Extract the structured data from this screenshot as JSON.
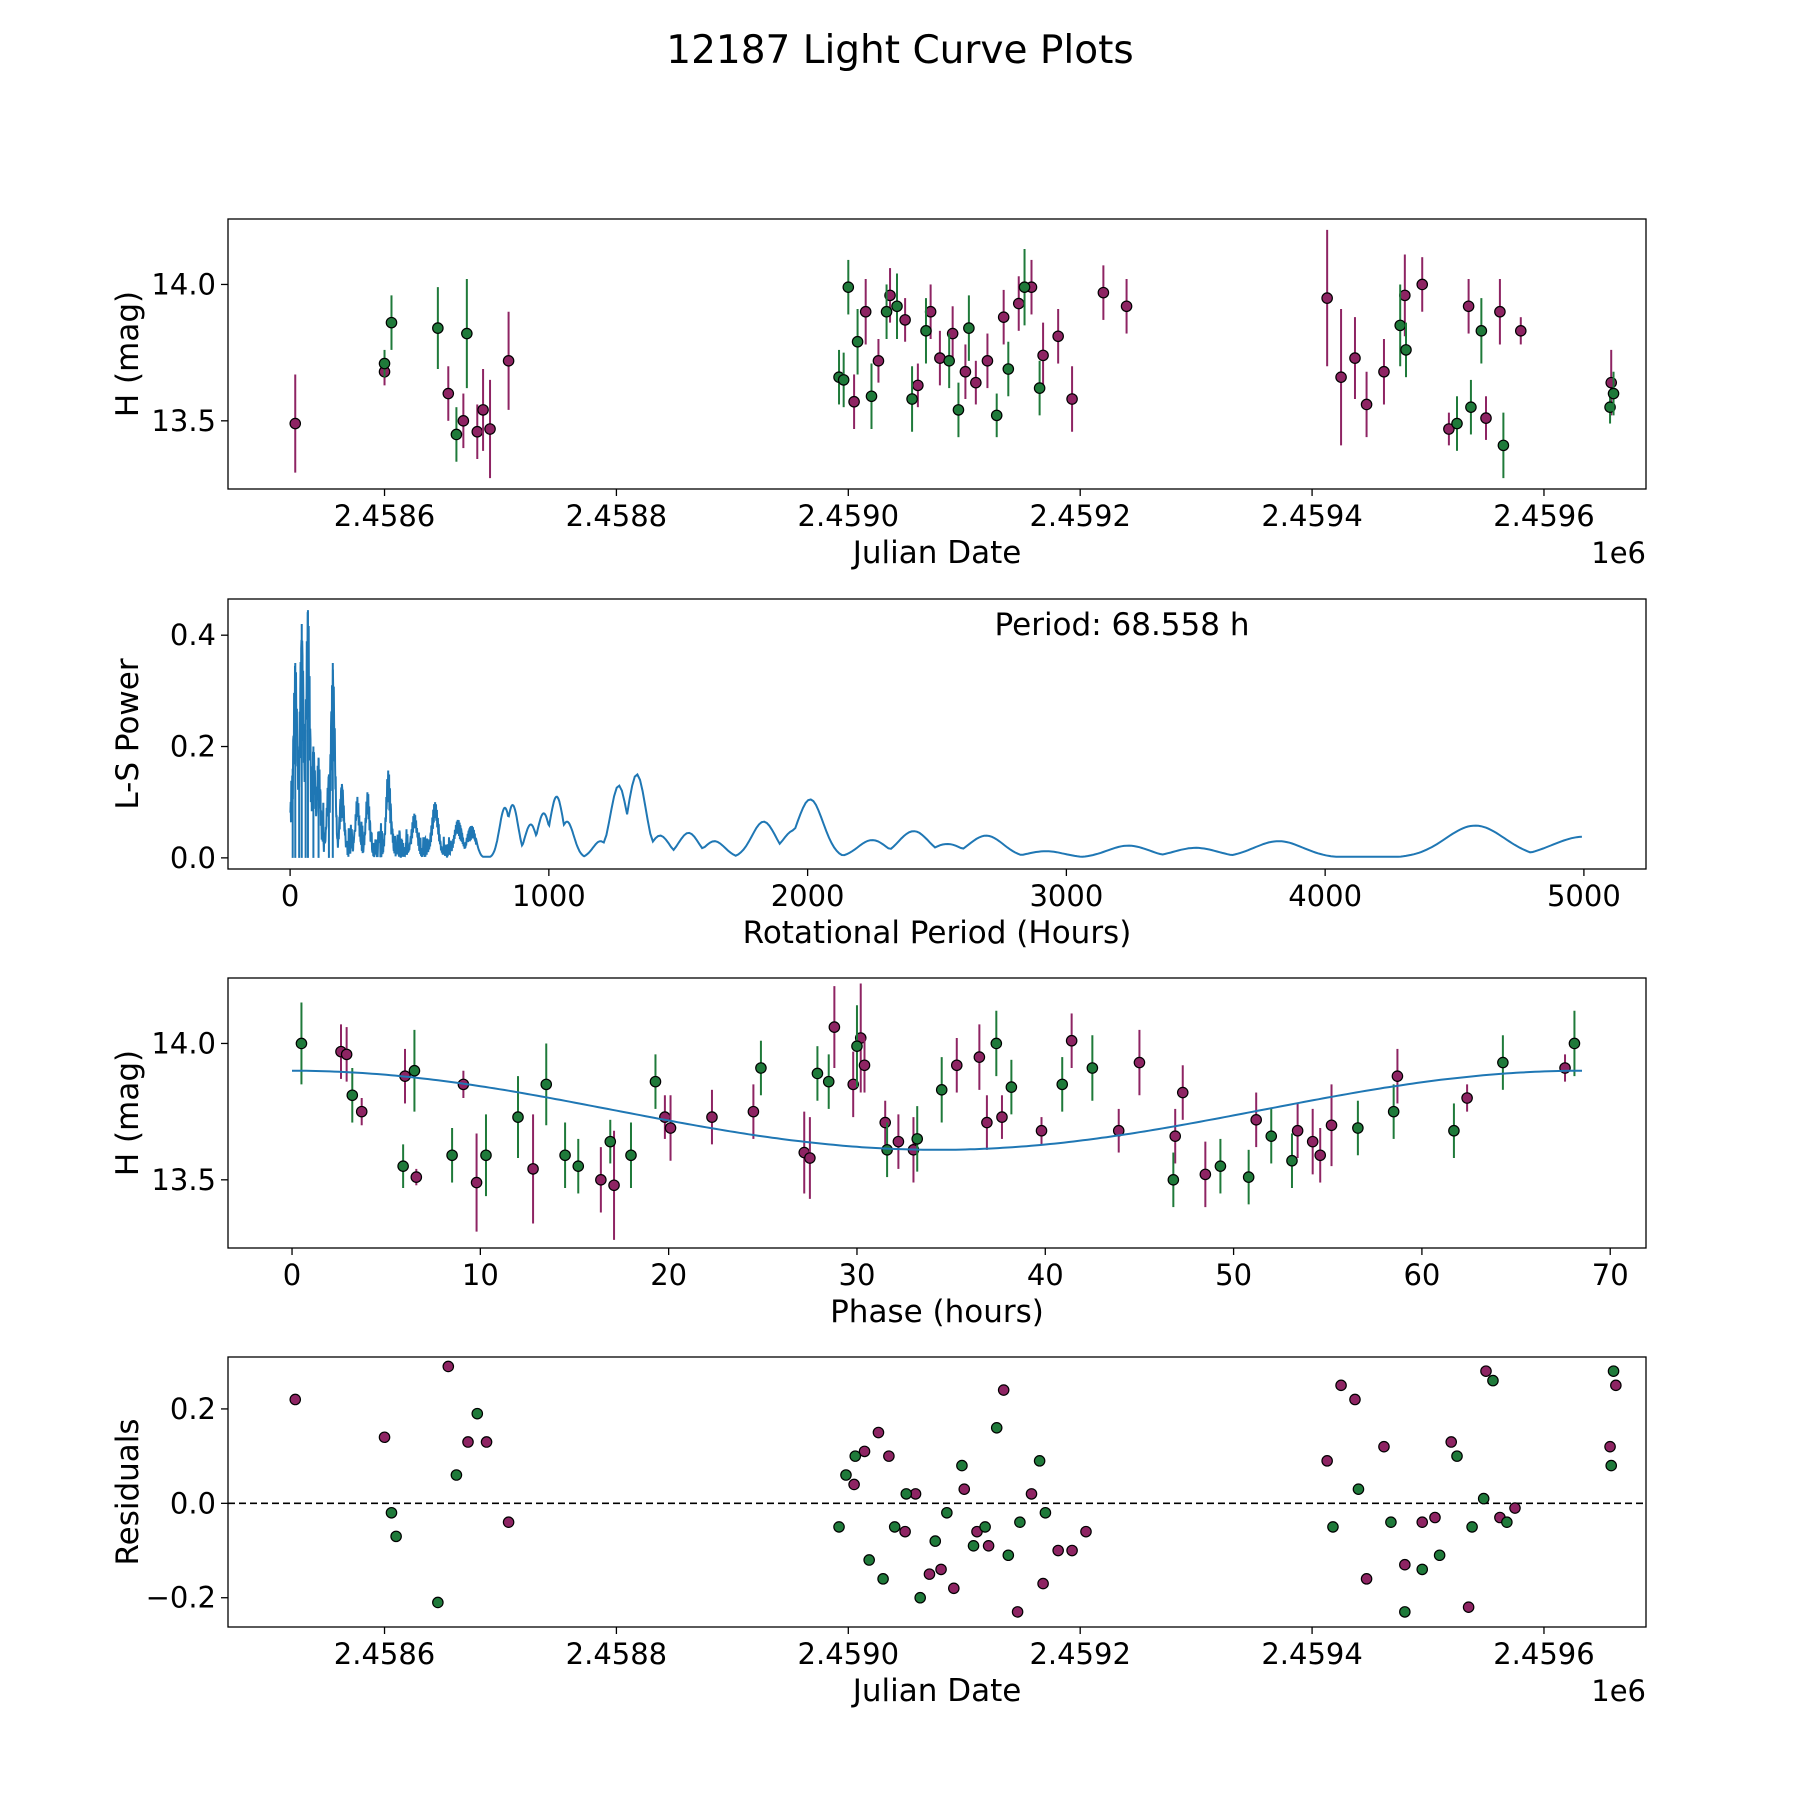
{
  "figure_title": "12187 Light Curve Plots",
  "colors": {
    "magenta_points": "#8e2463",
    "green_points": "#1f7a3a",
    "curve_blue": "#1f77b4"
  },
  "chart_data": [
    {
      "id": "lc",
      "type": "scatter",
      "title": "",
      "xlabel": "Julian Date",
      "ylabel": "H (mag)",
      "xlim": [
        2458465,
        2459688
      ],
      "ylim": [
        13.25,
        14.24
      ],
      "x_offset_label": "1e6",
      "xticks": [
        2458600,
        2458800,
        2459000,
        2459200,
        2459400,
        2459600
      ],
      "xtick_labels": [
        "2.4586",
        "2.4588",
        "2.4590",
        "2.4592",
        "2.4594",
        "2.4596"
      ],
      "yticks": [
        13.5,
        14.0
      ],
      "ytick_labels": [
        "13.5",
        "14.0"
      ],
      "series": [
        {
          "name": "magenta",
          "x": [
            2458523,
            2458600,
            2458655,
            2458668,
            2458680,
            2458685,
            2458691,
            2458707,
            2459005,
            2459015,
            2459026,
            2459036,
            2459049,
            2459060,
            2459071,
            2459079,
            2459090,
            2459101,
            2459110,
            2459120,
            2459134,
            2459147,
            2459158,
            2459168,
            2459181,
            2459193,
            2459220,
            2459240,
            2459413,
            2459425,
            2459437,
            2459447,
            2459462,
            2459480,
            2459495,
            2459518,
            2459535,
            2459550,
            2459562,
            2459580,
            2459658
          ],
          "y": [
            13.49,
            13.68,
            13.6,
            13.5,
            13.46,
            13.54,
            13.47,
            13.72,
            13.57,
            13.9,
            13.72,
            13.96,
            13.87,
            13.63,
            13.9,
            13.73,
            13.82,
            13.68,
            13.64,
            13.72,
            13.88,
            13.93,
            13.99,
            13.74,
            13.81,
            13.58,
            13.97,
            13.92,
            13.95,
            13.66,
            13.73,
            13.56,
            13.68,
            13.96,
            14.0,
            13.47,
            13.92,
            13.51,
            13.9,
            13.83,
            13.64
          ],
          "yerr": [
            0.18,
            0.05,
            0.1,
            0.1,
            0.1,
            0.15,
            0.18,
            0.18,
            0.1,
            0.12,
            0.08,
            0.1,
            0.08,
            0.08,
            0.1,
            0.1,
            0.1,
            0.1,
            0.08,
            0.1,
            0.1,
            0.1,
            0.1,
            0.12,
            0.1,
            0.12,
            0.1,
            0.1,
            0.25,
            0.25,
            0.15,
            0.12,
            0.12,
            0.15,
            0.1,
            0.06,
            0.1,
            0.08,
            0.12,
            0.05,
            0.12
          ]
        },
        {
          "name": "green",
          "x": [
            2458600,
            2458606,
            2458646,
            2458662,
            2458671,
            2458992,
            2458996,
            2459000,
            2459008,
            2459020,
            2459033,
            2459042,
            2459055,
            2459067,
            2459087,
            2459095,
            2459104,
            2459128,
            2459138,
            2459152,
            2459165,
            2459476,
            2459481,
            2459525,
            2459537,
            2459546,
            2459565,
            2459657,
            2459660
          ],
          "y": [
            13.71,
            13.86,
            13.84,
            13.45,
            13.82,
            13.66,
            13.65,
            13.99,
            13.79,
            13.59,
            13.9,
            13.92,
            13.58,
            13.83,
            13.72,
            13.54,
            13.84,
            13.52,
            13.69,
            13.99,
            13.62,
            13.85,
            13.76,
            13.49,
            13.55,
            13.83,
            13.41,
            13.55,
            13.6
          ],
          "yerr": [
            0.05,
            0.1,
            0.15,
            0.1,
            0.2,
            0.1,
            0.1,
            0.1,
            0.12,
            0.12,
            0.1,
            0.12,
            0.12,
            0.12,
            0.1,
            0.1,
            0.12,
            0.08,
            0.1,
            0.14,
            0.1,
            0.15,
            0.1,
            0.1,
            0.1,
            0.12,
            0.12,
            0.06,
            0.08
          ]
        }
      ]
    },
    {
      "id": "ls",
      "type": "line",
      "title": "",
      "xlabel": "Rotational Period (Hours)",
      "ylabel": "L-S Power",
      "annotation": "Period: 68.558 h",
      "xlim": [
        -240,
        5240
      ],
      "ylim": [
        -0.02,
        0.465
      ],
      "xticks": [
        0,
        1000,
        2000,
        3000,
        4000,
        5000
      ],
      "xtick_labels": [
        "0",
        "1000",
        "2000",
        "3000",
        "4000",
        "5000"
      ],
      "yticks": [
        0.0,
        0.2,
        0.4
      ],
      "ytick_labels": [
        "0.0",
        "0.2",
        "0.4"
      ],
      "peaks": [
        {
          "period": 10,
          "power": 0.16
        },
        {
          "period": 20,
          "power": 0.35
        },
        {
          "period": 35,
          "power": 0.2
        },
        {
          "period": 45,
          "power": 0.42
        },
        {
          "period": 60,
          "power": 0.23
        },
        {
          "period": 69,
          "power": 0.445
        },
        {
          "period": 90,
          "power": 0.2
        },
        {
          "period": 110,
          "power": 0.18
        },
        {
          "period": 150,
          "power": 0.15
        },
        {
          "period": 165,
          "power": 0.35
        },
        {
          "period": 200,
          "power": 0.14
        },
        {
          "period": 260,
          "power": 0.11
        },
        {
          "period": 300,
          "power": 0.12
        },
        {
          "period": 380,
          "power": 0.16
        },
        {
          "period": 480,
          "power": 0.08
        },
        {
          "period": 560,
          "power": 0.1
        },
        {
          "period": 650,
          "power": 0.07
        },
        {
          "period": 700,
          "power": 0.06
        },
        {
          "period": 830,
          "power": 0.09
        },
        {
          "period": 860,
          "power": 0.095
        },
        {
          "period": 930,
          "power": 0.06
        },
        {
          "period": 980,
          "power": 0.08
        },
        {
          "period": 1030,
          "power": 0.11
        },
        {
          "period": 1070,
          "power": 0.065
        },
        {
          "period": 1200,
          "power": 0.03
        },
        {
          "period": 1270,
          "power": 0.13
        },
        {
          "period": 1340,
          "power": 0.15
        },
        {
          "period": 1430,
          "power": 0.04
        },
        {
          "period": 1540,
          "power": 0.045
        },
        {
          "period": 1640,
          "power": 0.03
        },
        {
          "period": 1830,
          "power": 0.065
        },
        {
          "period": 1950,
          "power": 0.05
        },
        {
          "period": 2010,
          "power": 0.105
        },
        {
          "period": 2250,
          "power": 0.032
        },
        {
          "period": 2410,
          "power": 0.048
        },
        {
          "period": 2540,
          "power": 0.025
        },
        {
          "period": 2690,
          "power": 0.04
        },
        {
          "period": 2920,
          "power": 0.012
        },
        {
          "period": 3240,
          "power": 0.022
        },
        {
          "period": 3500,
          "power": 0.018
        },
        {
          "period": 3820,
          "power": 0.03
        },
        {
          "period": 4580,
          "power": 0.058
        },
        {
          "period": 5000,
          "power": 0.038
        }
      ]
    },
    {
      "id": "phase",
      "type": "scatter",
      "title": "",
      "xlabel": "Phase (hours)",
      "ylabel": "H (mag)",
      "xlim": [
        -3.4,
        71.9
      ],
      "ylim": [
        13.25,
        14.24
      ],
      "xticks": [
        0,
        10,
        20,
        30,
        40,
        50,
        60,
        70
      ],
      "xtick_labels": [
        "0",
        "10",
        "20",
        "30",
        "40",
        "50",
        "60",
        "70"
      ],
      "yticks": [
        13.5,
        14.0
      ],
      "ytick_labels": [
        "13.5",
        "14.0"
      ],
      "fit_curve": {
        "mean": 13.755,
        "amplitude": 0.145,
        "period": 68.558,
        "peak_phase": 0.0
      },
      "series": [
        {
          "name": "magenta",
          "x": [
            2.6,
            2.9,
            3.7,
            6.0,
            6.6,
            9.1,
            9.8,
            12.8,
            16.4,
            17.1,
            19.8,
            20.1,
            22.3,
            24.5,
            27.2,
            27.5,
            28.8,
            29.8,
            30.2,
            30.4,
            31.5,
            32.2,
            33.0,
            35.3,
            36.5,
            36.9,
            37.7,
            39.8,
            41.4,
            43.9,
            45.0,
            46.9,
            47.3,
            48.5,
            51.2,
            53.4,
            54.2,
            54.6,
            55.2,
            58.7,
            62.4,
            67.6
          ],
          "y": [
            13.97,
            13.96,
            13.75,
            13.88,
            13.51,
            13.85,
            13.49,
            13.54,
            13.5,
            13.48,
            13.73,
            13.69,
            13.73,
            13.75,
            13.6,
            13.58,
            14.06,
            13.85,
            14.02,
            13.92,
            13.71,
            13.64,
            13.61,
            13.92,
            13.95,
            13.71,
            13.73,
            13.68,
            14.01,
            13.68,
            13.93,
            13.66,
            13.82,
            13.52,
            13.72,
            13.68,
            13.64,
            13.59,
            13.7,
            13.88,
            13.8,
            13.91
          ],
          "yerr": [
            0.1,
            0.1,
            0.05,
            0.1,
            0.03,
            0.05,
            0.18,
            0.2,
            0.12,
            0.2,
            0.08,
            0.12,
            0.1,
            0.1,
            0.15,
            0.15,
            0.15,
            0.12,
            0.2,
            0.1,
            0.08,
            0.1,
            0.12,
            0.1,
            0.12,
            0.1,
            0.08,
            0.05,
            0.1,
            0.08,
            0.12,
            0.1,
            0.1,
            0.12,
            0.1,
            0.1,
            0.12,
            0.1,
            0.15,
            0.1,
            0.05,
            0.05
          ]
        },
        {
          "name": "green",
          "x": [
            0.5,
            3.2,
            5.9,
            6.5,
            8.5,
            10.3,
            12.0,
            13.5,
            14.5,
            15.2,
            16.9,
            18.0,
            19.3,
            24.9,
            27.9,
            28.5,
            30.0,
            31.6,
            33.2,
            34.5,
            37.4,
            38.2,
            40.9,
            42.5,
            46.8,
            49.3,
            50.8,
            52.0,
            53.1,
            56.6,
            58.5,
            61.7,
            64.3,
            68.1
          ],
          "y": [
            14.0,
            13.81,
            13.55,
            13.9,
            13.59,
            13.59,
            13.73,
            13.85,
            13.59,
            13.55,
            13.64,
            13.59,
            13.86,
            13.91,
            13.89,
            13.86,
            13.99,
            13.61,
            13.65,
            13.83,
            14.0,
            13.84,
            13.85,
            13.91,
            13.5,
            13.55,
            13.51,
            13.66,
            13.57,
            13.69,
            13.75,
            13.68,
            13.93,
            14.0
          ],
          "yerr": [
            0.15,
            0.1,
            0.08,
            0.15,
            0.1,
            0.15,
            0.15,
            0.15,
            0.12,
            0.1,
            0.08,
            0.12,
            0.1,
            0.1,
            0.1,
            0.1,
            0.15,
            0.1,
            0.12,
            0.12,
            0.12,
            0.1,
            0.1,
            0.12,
            0.1,
            0.1,
            0.1,
            0.1,
            0.1,
            0.1,
            0.1,
            0.1,
            0.1,
            0.12
          ]
        }
      ]
    },
    {
      "id": "resid",
      "type": "scatter",
      "title": "",
      "xlabel": "Julian Date",
      "ylabel": "Residuals",
      "xlim": [
        2458465,
        2459688
      ],
      "ylim": [
        -0.262,
        0.31
      ],
      "x_offset_label": "1e6",
      "reference_line": 0.0,
      "xticks": [
        2458600,
        2458800,
        2459000,
        2459200,
        2459400,
        2459600
      ],
      "xtick_labels": [
        "2.4586",
        "2.4588",
        "2.4590",
        "2.4592",
        "2.4594",
        "2.4596"
      ],
      "yticks": [
        -0.2,
        0.0,
        0.2
      ],
      "ytick_labels": [
        "−0.2",
        "0.0",
        "0.2"
      ],
      "series": [
        {
          "name": "magenta",
          "x": [
            2458523,
            2458600,
            2458655,
            2458672,
            2458688,
            2458707,
            2459005,
            2459014,
            2459026,
            2459035,
            2459049,
            2459058,
            2459070,
            2459080,
            2459091,
            2459100,
            2459111,
            2459121,
            2459134,
            2459146,
            2459158,
            2459168,
            2459181,
            2459193,
            2459205,
            2459413,
            2459425,
            2459437,
            2459447,
            2459462,
            2459480,
            2459495,
            2459506,
            2459520,
            2459535,
            2459550,
            2459562,
            2459575,
            2459657,
            2459662
          ],
          "y": [
            0.22,
            0.14,
            0.29,
            0.13,
            0.13,
            -0.04,
            0.04,
            0.11,
            0.15,
            0.1,
            -0.06,
            0.02,
            -0.15,
            -0.14,
            -0.18,
            0.03,
            -0.06,
            -0.09,
            0.24,
            -0.23,
            0.02,
            -0.17,
            -0.1,
            -0.1,
            -0.06,
            0.09,
            0.25,
            0.22,
            -0.16,
            0.12,
            -0.13,
            -0.04,
            -0.03,
            0.13,
            -0.22,
            0.28,
            -0.03,
            -0.01,
            0.12,
            0.25
          ],
          "extra_points_note": ""
        },
        {
          "name": "green",
          "x": [
            2458606,
            2458610,
            2458646,
            2458662,
            2458680,
            2458992,
            2458998,
            2459006,
            2459018,
            2459030,
            2459040,
            2459050,
            2459062,
            2459075,
            2459085,
            2459098,
            2459108,
            2459118,
            2459128,
            2459138,
            2459148,
            2459165,
            2459170,
            2459418,
            2459440,
            2459468,
            2459480,
            2459495,
            2459510,
            2459525,
            2459538,
            2459548,
            2459556,
            2459568,
            2459658,
            2459660
          ],
          "y": [
            -0.02,
            -0.07,
            -0.21,
            0.06,
            0.19,
            -0.05,
            0.06,
            0.1,
            -0.12,
            -0.16,
            -0.05,
            0.02,
            -0.2,
            -0.08,
            -0.02,
            0.08,
            -0.09,
            -0.05,
            0.16,
            -0.11,
            -0.04,
            0.09,
            -0.02,
            -0.05,
            0.03,
            -0.04,
            -0.23,
            -0.14,
            -0.11,
            0.1,
            -0.05,
            0.01,
            0.26,
            -0.04,
            0.08,
            0.28
          ]
        }
      ]
    }
  ]
}
